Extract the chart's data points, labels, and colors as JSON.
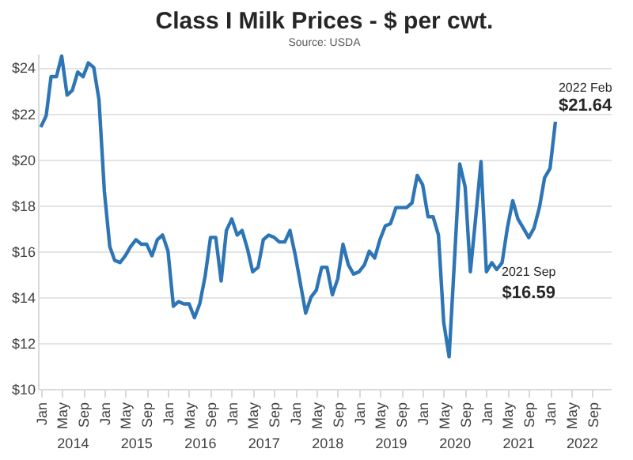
{
  "chart_data": {
    "type": "line",
    "title": "Class I Milk Prices - $ per cwt.",
    "annotations": [
      "Source: USDA",
      {
        "text": "2021 Sep",
        "x": "2021-09",
        "y": 16.59
      },
      {
        "text": "$16.59",
        "x": "2021-09",
        "y": 16.59
      },
      {
        "text": "2022 Feb",
        "x": "2022-02",
        "y": 21.64
      },
      {
        "text": "$21.64",
        "x": "2022-02",
        "y": 21.64
      }
    ],
    "x": [
      "2014-01",
      "2014-02",
      "2014-03",
      "2014-04",
      "2014-05",
      "2014-06",
      "2014-07",
      "2014-08",
      "2014-09",
      "2014-10",
      "2014-11",
      "2014-12",
      "2015-01",
      "2015-02",
      "2015-03",
      "2015-04",
      "2015-05",
      "2015-06",
      "2015-07",
      "2015-08",
      "2015-09",
      "2015-10",
      "2015-11",
      "2015-12",
      "2016-01",
      "2016-02",
      "2016-03",
      "2016-04",
      "2016-05",
      "2016-06",
      "2016-07",
      "2016-08",
      "2016-09",
      "2016-10",
      "2016-11",
      "2016-12",
      "2017-01",
      "2017-02",
      "2017-03",
      "2017-04",
      "2017-05",
      "2017-06",
      "2017-07",
      "2017-08",
      "2017-09",
      "2017-10",
      "2017-11",
      "2017-12",
      "2018-01",
      "2018-02",
      "2018-03",
      "2018-04",
      "2018-05",
      "2018-06",
      "2018-07",
      "2018-08",
      "2018-09",
      "2018-10",
      "2018-11",
      "2018-12",
      "2019-01",
      "2019-02",
      "2019-03",
      "2019-04",
      "2019-05",
      "2019-06",
      "2019-07",
      "2019-08",
      "2019-09",
      "2019-10",
      "2019-11",
      "2019-12",
      "2020-01",
      "2020-02",
      "2020-03",
      "2020-04",
      "2020-05",
      "2020-06",
      "2020-07",
      "2020-08",
      "2020-09",
      "2020-10",
      "2020-11",
      "2020-12",
      "2021-01",
      "2021-02",
      "2021-03",
      "2021-04",
      "2021-05",
      "2021-06",
      "2021-07",
      "2021-08",
      "2021-09",
      "2021-10",
      "2021-11",
      "2021-12",
      "2022-01",
      "2022-02"
    ],
    "series": [
      {
        "color": "#2e75b6",
        "values": [
          21.4,
          21.9,
          23.6,
          23.6,
          24.5,
          22.8,
          23.0,
          23.8,
          23.6,
          24.2,
          24.0,
          22.6,
          18.6,
          16.2,
          15.6,
          15.5,
          15.8,
          16.2,
          16.5,
          16.3,
          16.3,
          15.8,
          16.5,
          16.7,
          16.0,
          13.6,
          13.8,
          13.7,
          13.7,
          13.1,
          13.7,
          14.9,
          16.6,
          16.6,
          14.7,
          16.9,
          17.4,
          16.7,
          16.9,
          16.1,
          15.1,
          15.3,
          16.5,
          16.7,
          16.6,
          16.4,
          16.4,
          16.9,
          15.8,
          14.5,
          13.3,
          14.0,
          14.3,
          15.3,
          15.3,
          14.1,
          14.8,
          16.3,
          15.4,
          15.0,
          15.1,
          15.4,
          16.0,
          15.7,
          16.5,
          17.1,
          17.2,
          17.9,
          17.9,
          17.9,
          18.1,
          19.3,
          18.9,
          17.5,
          17.5,
          16.7,
          12.9,
          11.4,
          15.5,
          19.8,
          18.8,
          15.1,
          17.5,
          19.9,
          15.1,
          15.5,
          15.2,
          15.5,
          17.0,
          18.2,
          17.4,
          17.0,
          16.59,
          17.0,
          17.9,
          19.2,
          19.6,
          21.64
        ]
      }
    ],
    "xlim": [
      "2013-12-16",
      "2022-12-16"
    ],
    "xticks": [
      {
        "value": "2014-01",
        "label": "Jan"
      },
      {
        "value": "2014-05",
        "label": "May"
      },
      {
        "value": "2014-09",
        "label": "Sep"
      },
      {
        "value": "2015-01",
        "label": "Jan"
      },
      {
        "value": "2015-05",
        "label": "May"
      },
      {
        "value": "2015-09",
        "label": "Sep"
      },
      {
        "value": "2016-01",
        "label": "Jan"
      },
      {
        "value": "2016-05",
        "label": "May"
      },
      {
        "value": "2016-09",
        "label": "Sep"
      },
      {
        "value": "2017-01",
        "label": "Jan"
      },
      {
        "value": "2017-05",
        "label": "May"
      },
      {
        "value": "2017-09",
        "label": "Sep"
      },
      {
        "value": "2018-01",
        "label": "Jan"
      },
      {
        "value": "2018-05",
        "label": "May"
      },
      {
        "value": "2018-09",
        "label": "Sep"
      },
      {
        "value": "2019-01",
        "label": "Jan"
      },
      {
        "value": "2019-05",
        "label": "May"
      },
      {
        "value": "2019-09",
        "label": "Sep"
      },
      {
        "value": "2020-01",
        "label": "Jan"
      },
      {
        "value": "2020-05",
        "label": "May"
      },
      {
        "value": "2020-09",
        "label": "Sep"
      },
      {
        "value": "2021-01",
        "label": "Jan"
      },
      {
        "value": "2021-05",
        "label": "May"
      },
      {
        "value": "2021-09",
        "label": "Sep"
      },
      {
        "value": "2022-01",
        "label": "Jan"
      },
      {
        "value": "2022-05",
        "label": "May"
      },
      {
        "value": "2022-09",
        "label": "Sep"
      }
    ],
    "x2lim": [
      "2013-12-16",
      "2022-12-16"
    ],
    "x2ticks": [
      {
        "value": "2014-07",
        "label": "2014"
      },
      {
        "value": "2015-07",
        "label": "2015"
      },
      {
        "value": "2016-07",
        "label": "2016"
      },
      {
        "value": "2017-07",
        "label": "2017"
      },
      {
        "value": "2018-07",
        "label": "2018"
      },
      {
        "value": "2019-07",
        "label": "2019"
      },
      {
        "value": "2020-07",
        "label": "2020"
      },
      {
        "value": "2021-07",
        "label": "2021"
      },
      {
        "value": "2022-07",
        "label": "2022"
      }
    ],
    "ylim": [
      10,
      24.6
    ],
    "yticks": [
      {
        "value": 10,
        "label": "$10"
      },
      {
        "value": 12,
        "label": "$12"
      },
      {
        "value": 14,
        "label": "$14"
      },
      {
        "value": 16,
        "label": "$16"
      },
      {
        "value": 18,
        "label": "$18"
      },
      {
        "value": 20,
        "label": "$20"
      },
      {
        "value": 22,
        "label": "$22"
      },
      {
        "value": 24,
        "label": "$24"
      }
    ],
    "grid": "y",
    "legend": false,
    "marker": "none",
    "line_style": "solid"
  }
}
